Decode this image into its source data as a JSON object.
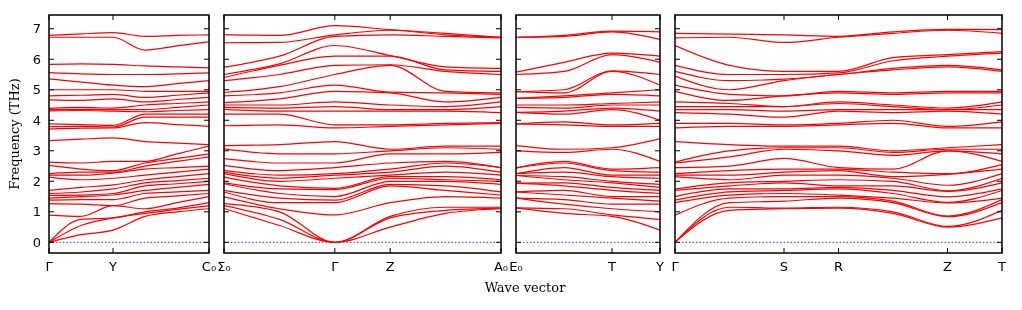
{
  "chart_data": [
    {
      "type": "line",
      "ylabel": "Frequency (THz)",
      "categories": [
        "Γ",
        null,
        "Y",
        null,
        null,
        "C₀"
      ],
      "ylim": [
        -0.35,
        7.45
      ],
      "yticks": [
        0,
        1,
        2,
        3,
        4,
        5,
        6,
        7
      ],
      "grid": false,
      "ref_lines": [
        {
          "axis": "y",
          "value": 0,
          "color": "#0000ff",
          "line_style": "dotted"
        }
      ],
      "series": [
        {
          "color": "#ff0000",
          "values": [
            0,
            0.25,
            0.4,
            0.85,
            1.0,
            1.1
          ]
        },
        {
          "color": "#ff0000",
          "values": [
            0,
            0.55,
            0.8,
            0.95,
            1.08,
            1.2
          ]
        },
        {
          "color": "#ff0000",
          "values": [
            0,
            0.75,
            0.8,
            1.0,
            1.12,
            1.3
          ]
        },
        {
          "color": "#ff0000",
          "values": [
            0.89,
            0.85,
            1.2,
            1.1,
            1.3,
            1.5
          ]
        },
        {
          "color": "#ff0000",
          "values": [
            1.27,
            1.25,
            1.2,
            1.45,
            1.52,
            1.6
          ]
        },
        {
          "color": "#ff0000",
          "values": [
            1.38,
            1.4,
            1.4,
            1.6,
            1.65,
            1.7
          ]
        },
        {
          "color": "#ff0000",
          "values": [
            1.45,
            1.5,
            1.55,
            1.7,
            1.8,
            1.9
          ]
        },
        {
          "color": "#ff0000",
          "values": [
            1.54,
            1.55,
            1.6,
            1.85,
            1.92,
            2.0
          ]
        },
        {
          "color": "#ff0000",
          "values": [
            1.6,
            1.65,
            1.75,
            1.95,
            2.02,
            2.1
          ]
        },
        {
          "color": "#ff0000",
          "values": [
            1.7,
            1.8,
            1.88,
            2.05,
            2.15,
            2.25
          ]
        },
        {
          "color": "#ff0000",
          "values": [
            2.14,
            2.05,
            2.1,
            2.2,
            2.3,
            2.4
          ]
        },
        {
          "color": "#ff0000",
          "values": [
            2.2,
            2.2,
            2.27,
            2.4,
            2.45,
            2.5
          ]
        },
        {
          "color": "#ff0000",
          "values": [
            2.25,
            2.3,
            2.3,
            2.5,
            2.65,
            2.8
          ]
        },
        {
          "color": "#ff0000",
          "values": [
            2.52,
            2.4,
            2.35,
            2.6,
            2.75,
            2.9
          ]
        },
        {
          "color": "#ff0000",
          "values": [
            2.63,
            2.6,
            2.65,
            2.65,
            2.9,
            3.15
          ]
        },
        {
          "color": "#ff0000",
          "values": [
            3.33,
            3.38,
            3.42,
            3.3,
            3.25,
            3.2
          ]
        },
        {
          "color": "#ff0000",
          "values": [
            3.71,
            3.74,
            3.75,
            3.92,
            3.86,
            3.8
          ]
        },
        {
          "color": "#ff0000",
          "values": [
            3.79,
            3.8,
            3.78,
            4.1,
            4.1,
            4.1
          ]
        },
        {
          "color": "#ff0000",
          "values": [
            3.88,
            3.86,
            3.83,
            4.2,
            4.2,
            4.2
          ]
        },
        {
          "color": "#ff0000",
          "values": [
            4.31,
            4.32,
            4.3,
            4.28,
            4.32,
            4.35
          ]
        },
        {
          "color": "#ff0000",
          "values": [
            4.35,
            4.36,
            4.35,
            4.35,
            4.42,
            4.5
          ]
        },
        {
          "color": "#ff0000",
          "values": [
            4.39,
            4.42,
            4.4,
            4.5,
            4.55,
            4.6
          ]
        },
        {
          "color": "#ff0000",
          "values": [
            4.67,
            4.65,
            4.7,
            4.6,
            4.68,
            4.75
          ]
        },
        {
          "color": "#ff0000",
          "values": [
            4.8,
            4.82,
            4.85,
            4.75,
            4.82,
            4.9
          ]
        },
        {
          "color": "#ff0000",
          "values": [
            5.0,
            5.0,
            5.0,
            4.95,
            4.95,
            4.95
          ]
        },
        {
          "color": "#ff0000",
          "values": [
            5.36,
            5.25,
            5.15,
            5.1,
            5.2,
            5.3
          ]
        },
        {
          "color": "#ff0000",
          "values": [
            5.56,
            5.52,
            5.5,
            5.5,
            5.52,
            5.55
          ]
        },
        {
          "color": "#ff0000",
          "values": [
            5.83,
            5.85,
            5.83,
            5.78,
            5.75,
            5.72
          ]
        },
        {
          "color": "#ff0000",
          "values": [
            6.72,
            6.72,
            6.72,
            6.3,
            6.44,
            6.57
          ]
        },
        {
          "color": "#ff0000",
          "values": [
            6.78,
            6.83,
            6.87,
            6.75,
            6.78,
            6.8
          ]
        }
      ]
    },
    {
      "type": "line",
      "xlabel": "Wave vector",
      "categories": [
        "Σ₀",
        null,
        "Γ",
        "Z",
        null,
        "A₀"
      ],
      "ylim": [
        -0.35,
        7.45
      ],
      "yticks": [
        0,
        1,
        2,
        3,
        4,
        5,
        6,
        7
      ],
      "tick_labels": "x",
      "grid": false,
      "ref_lines": [
        {
          "axis": "y",
          "value": 0,
          "color": "#0000ff",
          "line_style": "dotted"
        }
      ],
      "series": [
        {
          "color": "#ff0000",
          "values": [
            1.11,
            0.55,
            0,
            0.5,
            0.95,
            1.1
          ]
        },
        {
          "color": "#ff0000",
          "values": [
            1.2,
            0.75,
            0,
            0.8,
            1.05,
            1.12
          ]
        },
        {
          "color": "#ff0000",
          "values": [
            1.27,
            1.0,
            0,
            0.85,
            1.15,
            1.15
          ]
        },
        {
          "color": "#ff0000",
          "values": [
            1.49,
            1.1,
            0.9,
            1.3,
            1.5,
            1.45
          ]
        },
        {
          "color": "#ff0000",
          "values": [
            1.65,
            1.3,
            1.3,
            1.85,
            1.7,
            1.55
          ]
        },
        {
          "color": "#ff0000",
          "values": [
            1.7,
            1.45,
            1.38,
            1.9,
            1.85,
            1.65
          ]
        },
        {
          "color": "#ff0000",
          "values": [
            1.92,
            1.6,
            1.5,
            2.0,
            2.0,
            1.9
          ]
        },
        {
          "color": "#ff0000",
          "values": [
            1.95,
            1.75,
            1.73,
            2.1,
            2.05,
            2.0
          ]
        },
        {
          "color": "#ff0000",
          "values": [
            2.14,
            1.85,
            1.77,
            2.15,
            2.15,
            2.05
          ]
        },
        {
          "color": "#ff0000",
          "values": [
            2.25,
            2.0,
            2.1,
            2.2,
            2.3,
            2.2
          ]
        },
        {
          "color": "#ff0000",
          "values": [
            2.3,
            2.1,
            2.2,
            2.3,
            2.5,
            2.3
          ]
        },
        {
          "color": "#ff0000",
          "values": [
            2.36,
            2.2,
            2.25,
            2.4,
            2.6,
            2.45
          ]
        },
        {
          "color": "#ff0000",
          "values": [
            2.52,
            2.35,
            2.45,
            2.6,
            2.65,
            2.45
          ]
        },
        {
          "color": "#ff0000",
          "values": [
            2.74,
            2.6,
            2.6,
            2.9,
            2.9,
            2.95
          ]
        },
        {
          "color": "#ff0000",
          "values": [
            3.06,
            2.9,
            2.9,
            3.0,
            3.1,
            3.05
          ]
        },
        {
          "color": "#ff0000",
          "values": [
            3.17,
            3.2,
            3.3,
            3.05,
            3.15,
            3.15
          ]
        },
        {
          "color": "#ff0000",
          "values": [
            3.82,
            3.85,
            3.75,
            3.8,
            3.85,
            3.9
          ]
        },
        {
          "color": "#ff0000",
          "values": [
            4.2,
            4.2,
            3.85,
            3.85,
            3.9,
            3.92
          ]
        },
        {
          "color": "#ff0000",
          "values": [
            4.36,
            4.3,
            4.3,
            4.3,
            4.3,
            4.25
          ]
        },
        {
          "color": "#ff0000",
          "values": [
            4.42,
            4.4,
            4.45,
            4.35,
            4.35,
            4.45
          ]
        },
        {
          "color": "#ff0000",
          "values": [
            4.5,
            4.5,
            4.6,
            4.5,
            4.45,
            4.6
          ]
        },
        {
          "color": "#ff0000",
          "values": [
            4.58,
            4.7,
            4.95,
            4.9,
            4.6,
            4.75
          ]
        },
        {
          "color": "#ff0000",
          "values": [
            4.8,
            4.9,
            5.15,
            4.92,
            4.9,
            4.85
          ]
        },
        {
          "color": "#ff0000",
          "values": [
            4.91,
            5.1,
            5.5,
            5.8,
            4.95,
            4.9
          ]
        },
        {
          "color": "#ff0000",
          "values": [
            5.3,
            5.5,
            5.8,
            5.82,
            5.6,
            5.5
          ]
        },
        {
          "color": "#ff0000",
          "values": [
            5.4,
            5.8,
            6.1,
            6.1,
            5.65,
            5.6
          ]
        },
        {
          "color": "#ff0000",
          "values": [
            5.5,
            5.85,
            6.45,
            6.12,
            5.75,
            5.7
          ]
        },
        {
          "color": "#ff0000",
          "values": [
            5.74,
            6.1,
            6.75,
            6.8,
            6.75,
            6.7
          ]
        },
        {
          "color": "#ff0000",
          "values": [
            6.54,
            6.55,
            6.8,
            6.95,
            6.8,
            6.72
          ]
        },
        {
          "color": "#ff0000",
          "values": [
            6.81,
            6.78,
            7.1,
            6.97,
            6.85,
            6.72
          ]
        }
      ]
    },
    {
      "type": "line",
      "categories": [
        "E₀",
        null,
        "T",
        "Y"
      ],
      "ylim": [
        -0.35,
        7.45
      ],
      "yticks": [
        0,
        1,
        2,
        3,
        4,
        5,
        6,
        7
      ],
      "tick_labels": "x",
      "grid": false,
      "ref_lines": [
        {
          "axis": "y",
          "value": 0,
          "color": "#0000ff",
          "line_style": "dotted"
        }
      ],
      "series": [
        {
          "color": "#ff0000",
          "values": [
            1.13,
            0.95,
            0.85,
            0.4
          ]
        },
        {
          "color": "#ff0000",
          "values": [
            1.13,
            1.1,
            0.9,
            0.75
          ]
        },
        {
          "color": "#ff0000",
          "values": [
            1.45,
            1.25,
            1.1,
            1.0
          ]
        },
        {
          "color": "#ff0000",
          "values": [
            1.45,
            1.4,
            1.25,
            1.25
          ]
        },
        {
          "color": "#ff0000",
          "values": [
            1.65,
            1.55,
            1.45,
            1.35
          ]
        },
        {
          "color": "#ff0000",
          "values": [
            1.65,
            1.7,
            1.5,
            1.5
          ]
        },
        {
          "color": "#ff0000",
          "values": [
            1.94,
            1.85,
            1.7,
            1.6
          ]
        },
        {
          "color": "#ff0000",
          "values": [
            1.94,
            1.95,
            1.8,
            1.7
          ]
        },
        {
          "color": "#ff0000",
          "values": [
            2.19,
            2.05,
            1.95,
            1.8
          ]
        },
        {
          "color": "#ff0000",
          "values": [
            2.19,
            2.15,
            2.0,
            1.9
          ]
        },
        {
          "color": "#ff0000",
          "values": [
            2.25,
            2.3,
            2.15,
            2.1
          ]
        },
        {
          "color": "#ff0000",
          "values": [
            2.25,
            2.45,
            2.2,
            2.2
          ]
        },
        {
          "color": "#ff0000",
          "values": [
            2.44,
            2.6,
            2.35,
            2.3
          ]
        },
        {
          "color": "#ff0000",
          "values": [
            2.44,
            2.65,
            2.4,
            2.45
          ]
        },
        {
          "color": "#ff0000",
          "values": [
            3.0,
            2.95,
            3.05,
            2.65
          ]
        },
        {
          "color": "#ff0000",
          "values": [
            3.17,
            3.05,
            3.1,
            3.4
          ]
        },
        {
          "color": "#ff0000",
          "values": [
            3.88,
            3.85,
            3.8,
            3.8
          ]
        },
        {
          "color": "#ff0000",
          "values": [
            3.88,
            3.95,
            3.85,
            3.9
          ]
        },
        {
          "color": "#ff0000",
          "values": [
            4.26,
            4.2,
            4.35,
            4.0
          ]
        },
        {
          "color": "#ff0000",
          "values": [
            4.26,
            4.3,
            4.4,
            4.3
          ]
        },
        {
          "color": "#ff0000",
          "values": [
            4.42,
            4.4,
            4.5,
            4.5
          ]
        },
        {
          "color": "#ff0000",
          "values": [
            4.5,
            4.5,
            4.55,
            4.6
          ]
        },
        {
          "color": "#ff0000",
          "values": [
            4.72,
            4.75,
            4.85,
            4.8
          ]
        },
        {
          "color": "#ff0000",
          "values": [
            4.72,
            4.8,
            4.9,
            5.0
          ]
        },
        {
          "color": "#ff0000",
          "values": [
            4.94,
            4.9,
            5.6,
            5.15
          ]
        },
        {
          "color": "#ff0000",
          "values": [
            4.94,
            5.0,
            5.62,
            5.5
          ]
        },
        {
          "color": "#ff0000",
          "values": [
            5.5,
            5.6,
            6.15,
            5.9
          ]
        },
        {
          "color": "#ff0000",
          "values": [
            5.58,
            5.9,
            6.2,
            6.1
          ]
        },
        {
          "color": "#ff0000",
          "values": [
            6.72,
            6.75,
            6.9,
            6.65
          ]
        },
        {
          "color": "#ff0000",
          "values": [
            6.72,
            6.78,
            6.92,
            6.9
          ]
        }
      ]
    },
    {
      "type": "line",
      "categories": [
        "Γ",
        null,
        "S",
        "R",
        null,
        "Z",
        "T"
      ],
      "ylim": [
        -0.35,
        7.45
      ],
      "yticks": [
        0,
        1,
        2,
        3,
        4,
        5,
        6,
        7
      ],
      "tick_labels": "x",
      "grid": false,
      "ref_lines": [
        {
          "axis": "y",
          "value": 0,
          "color": "#0000ff",
          "line_style": "dotted"
        }
      ],
      "series": [
        {
          "color": "#ff0000",
          "values": [
            0,
            1.05,
            1.1,
            1.12,
            0.95,
            0.5,
            0.8
          ]
        },
        {
          "color": "#ff0000",
          "values": [
            0,
            1.15,
            1.12,
            1.15,
            1.0,
            0.52,
            1.05
          ]
        },
        {
          "color": "#ff0000",
          "values": [
            0,
            1.3,
            1.35,
            1.45,
            1.3,
            0.84,
            1.3
          ]
        },
        {
          "color": "#ff0000",
          "values": [
            0.89,
            1.45,
            1.5,
            1.5,
            1.35,
            0.86,
            1.4
          ]
        },
        {
          "color": "#ff0000",
          "values": [
            1.3,
            1.55,
            1.6,
            1.55,
            1.45,
            1.29,
            1.45
          ]
        },
        {
          "color": "#ff0000",
          "values": [
            1.38,
            1.65,
            1.7,
            1.75,
            1.6,
            1.31,
            1.7
          ]
        },
        {
          "color": "#ff0000",
          "values": [
            1.5,
            1.75,
            1.75,
            1.8,
            1.7,
            1.49,
            1.75
          ]
        },
        {
          "color": "#ff0000",
          "values": [
            1.7,
            1.85,
            1.95,
            1.85,
            1.85,
            1.67,
            1.95
          ]
        },
        {
          "color": "#ff0000",
          "values": [
            1.75,
            1.95,
            2.0,
            2.05,
            2.0,
            1.69,
            2.1
          ]
        },
        {
          "color": "#ff0000",
          "values": [
            2.15,
            2.05,
            2.2,
            2.2,
            2.1,
            1.87,
            2.25
          ]
        },
        {
          "color": "#ff0000",
          "values": [
            2.2,
            2.2,
            2.3,
            2.35,
            2.15,
            2.23,
            2.4
          ]
        },
        {
          "color": "#ff0000",
          "values": [
            2.25,
            2.35,
            2.4,
            2.4,
            2.3,
            2.25,
            2.55
          ]
        },
        {
          "color": "#ff0000",
          "values": [
            2.45,
            2.5,
            2.75,
            2.45,
            2.4,
            3.0,
            2.65
          ]
        },
        {
          "color": "#ff0000",
          "values": [
            2.6,
            2.8,
            3.05,
            3.0,
            2.85,
            3.0,
            2.9
          ]
        },
        {
          "color": "#ff0000",
          "values": [
            2.63,
            3.0,
            3.1,
            3.1,
            2.95,
            3.05,
            3.05
          ]
        },
        {
          "color": "#ff0000",
          "values": [
            3.3,
            3.2,
            3.15,
            3.15,
            3.0,
            3.1,
            3.2
          ]
        },
        {
          "color": "#ff0000",
          "values": [
            3.75,
            3.8,
            3.8,
            3.85,
            3.9,
            3.75,
            3.75
          ]
        },
        {
          "color": "#ff0000",
          "values": [
            3.9,
            3.9,
            3.85,
            3.9,
            4.0,
            3.8,
            3.95
          ]
        },
        {
          "color": "#ff0000",
          "values": [
            4.25,
            4.2,
            4.1,
            4.3,
            4.25,
            4.3,
            4.2
          ]
        },
        {
          "color": "#ff0000",
          "values": [
            4.35,
            4.35,
            4.3,
            4.35,
            4.35,
            4.35,
            4.35
          ]
        },
        {
          "color": "#ff0000",
          "values": [
            4.45,
            4.45,
            4.45,
            4.55,
            4.45,
            4.35,
            4.5
          ]
        },
        {
          "color": "#ff0000",
          "values": [
            4.6,
            4.55,
            4.45,
            4.6,
            4.5,
            4.4,
            4.6
          ]
        },
        {
          "color": "#ff0000",
          "values": [
            4.95,
            4.65,
            4.8,
            4.9,
            4.85,
            4.9,
            4.9
          ]
        },
        {
          "color": "#ff0000",
          "values": [
            5.15,
            4.85,
            4.8,
            4.95,
            4.9,
            4.95,
            4.95
          ]
        },
        {
          "color": "#ff0000",
          "values": [
            5.45,
            5.0,
            5.3,
            5.5,
            5.65,
            5.75,
            5.6
          ]
        },
        {
          "color": "#ff0000",
          "values": [
            5.6,
            5.3,
            5.35,
            5.5,
            5.7,
            5.8,
            5.65
          ]
        },
        {
          "color": "#ff0000",
          "values": [
            5.8,
            5.5,
            5.5,
            5.55,
            5.95,
            6.1,
            6.2
          ]
        },
        {
          "color": "#ff0000",
          "values": [
            6.45,
            5.8,
            5.6,
            5.6,
            6.05,
            6.15,
            6.25
          ]
        },
        {
          "color": "#ff0000",
          "values": [
            6.7,
            6.72,
            6.55,
            6.72,
            6.85,
            6.95,
            6.85
          ]
        },
        {
          "color": "#ff0000",
          "values": [
            6.85,
            6.82,
            6.8,
            6.75,
            6.9,
            6.98,
            6.97
          ]
        }
      ]
    }
  ]
}
